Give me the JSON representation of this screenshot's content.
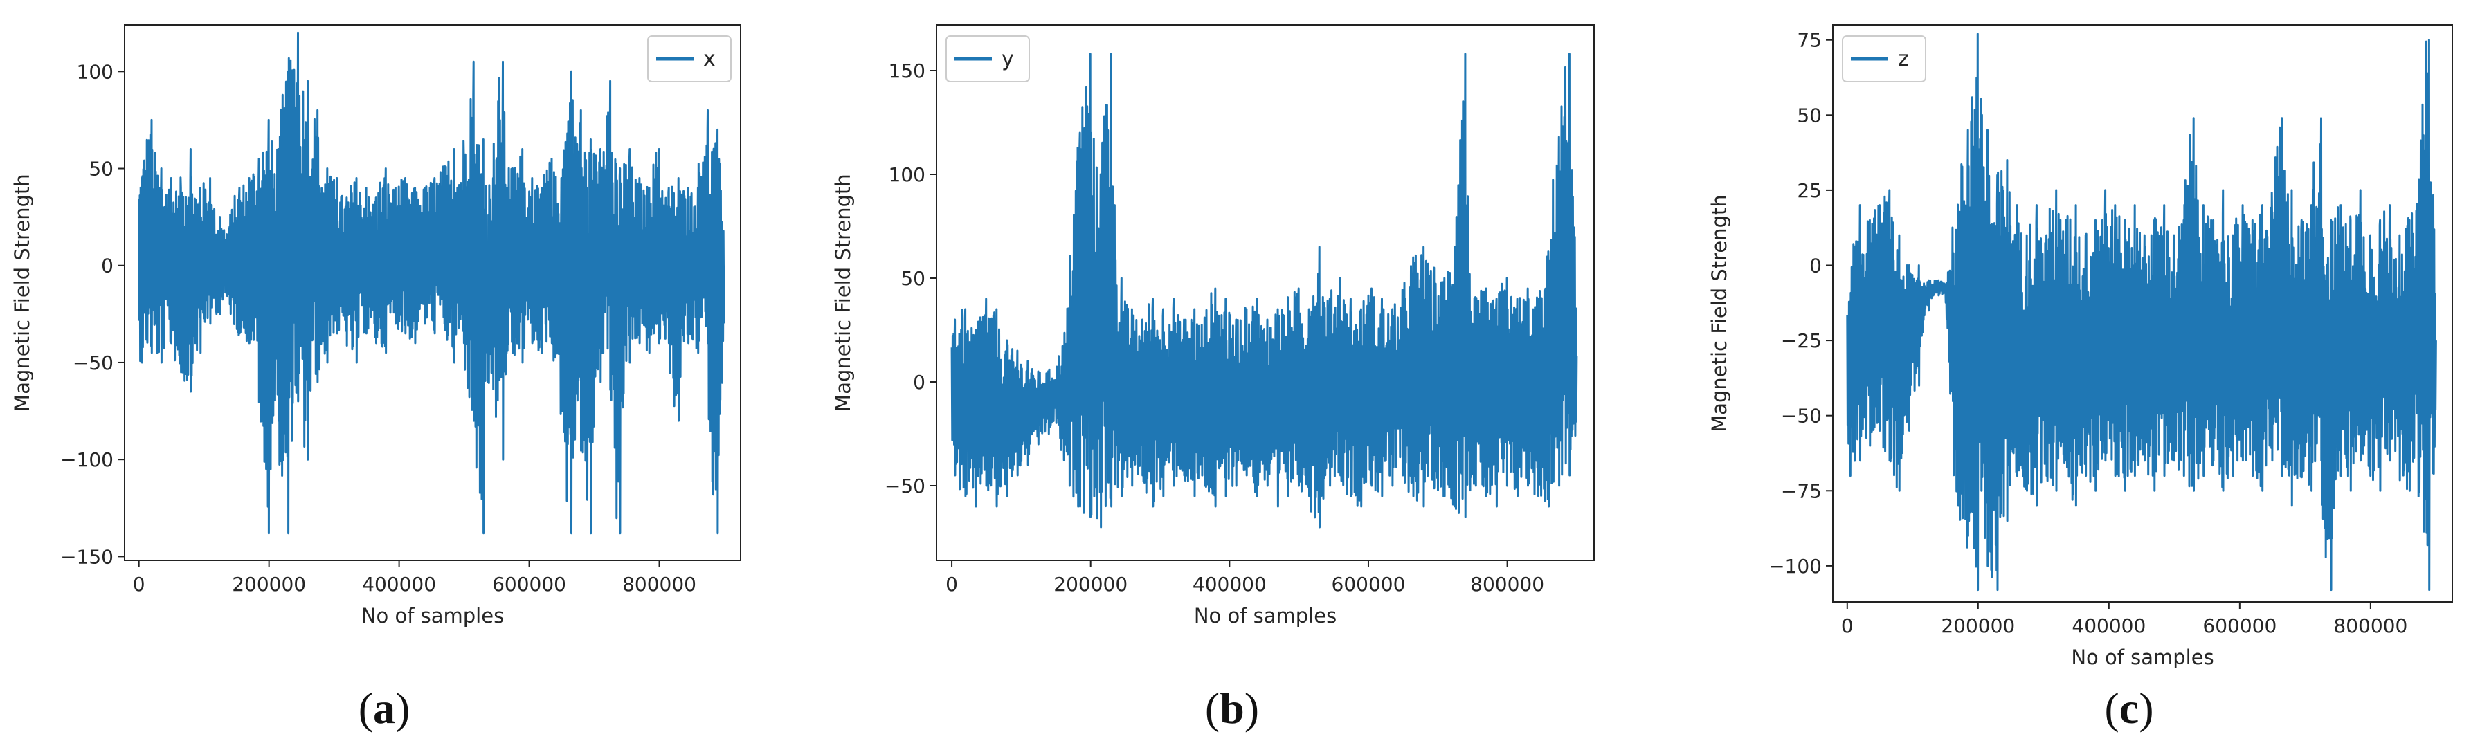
{
  "chart_data": [
    {
      "type": "line",
      "panel": "a",
      "caption_open": "(",
      "caption_letter": "a",
      "caption_close": ")",
      "xlabel": "No of samples",
      "ylabel": "Magnetic Field Strength",
      "xlim": [
        -22000,
        925000
      ],
      "ylim": [
        -152,
        124
      ],
      "xticks": [
        0,
        200000,
        400000,
        600000,
        800000
      ],
      "xtick_labels": [
        "0",
        "200000",
        "400000",
        "600000",
        "800000"
      ],
      "yticks": [
        -150,
        -100,
        -50,
        0,
        50,
        100
      ],
      "ytick_labels": [
        "−150",
        "−100",
        "−50",
        "0",
        "50",
        "100"
      ],
      "legend": "top-right",
      "series": [
        {
          "name": "x",
          "color": "#1f77b4",
          "x": [
            0,
            15000,
            30000,
            45000,
            60000,
            75000,
            90000,
            105000,
            120000,
            135000,
            150000,
            165000,
            180000,
            195000,
            210000,
            225000,
            240000,
            255000,
            270000,
            285000,
            300000,
            315000,
            330000,
            345000,
            360000,
            375000,
            390000,
            405000,
            420000,
            435000,
            450000,
            465000,
            480000,
            495000,
            510000,
            525000,
            540000,
            555000,
            570000,
            585000,
            600000,
            615000,
            630000,
            645000,
            660000,
            675000,
            690000,
            705000,
            720000,
            735000,
            750000,
            765000,
            780000,
            795000,
            810000,
            825000,
            840000,
            855000,
            870000,
            885000,
            900000
          ],
          "y_low": [
            -50,
            -45,
            -50,
            -40,
            -55,
            -65,
            -45,
            -30,
            -25,
            -20,
            -35,
            -40,
            -45,
            -138,
            -80,
            -138,
            -70,
            -100,
            -60,
            -50,
            -35,
            -40,
            -50,
            -35,
            -40,
            -45,
            -30,
            -35,
            -40,
            -30,
            -35,
            -30,
            -50,
            -40,
            -80,
            -138,
            -60,
            -100,
            -45,
            -50,
            -40,
            -45,
            -40,
            -60,
            -138,
            -80,
            -138,
            -60,
            -40,
            -138,
            -50,
            -40,
            -45,
            -40,
            -40,
            -80,
            -40,
            -45,
            -40,
            -138,
            -40
          ],
          "y_high": [
            45,
            75,
            50,
            45,
            40,
            60,
            40,
            45,
            25,
            20,
            40,
            45,
            55,
            75,
            60,
            100,
            120,
            95,
            80,
            50,
            45,
            35,
            45,
            40,
            35,
            50,
            40,
            45,
            40,
            40,
            45,
            50,
            60,
            55,
            105,
            65,
            45,
            105,
            50,
            60,
            45,
            40,
            55,
            45,
            100,
            80,
            65,
            60,
            95,
            50,
            60,
            45,
            40,
            60,
            40,
            45,
            40,
            40,
            80,
            70,
            40
          ]
        }
      ]
    },
    {
      "type": "line",
      "panel": "b",
      "caption_open": "(",
      "caption_letter": "b",
      "caption_close": ")",
      "xlabel": "No of samples",
      "ylabel": "Magnetic Field Strength",
      "xlim": [
        -22000,
        925000
      ],
      "ylim": [
        -86,
        172
      ],
      "xticks": [
        0,
        200000,
        400000,
        600000,
        800000
      ],
      "xtick_labels": [
        "0",
        "200000",
        "400000",
        "600000",
        "800000"
      ],
      "yticks": [
        -50,
        0,
        50,
        100,
        150
      ],
      "ytick_labels": [
        "−50",
        "0",
        "50",
        "100",
        "150"
      ],
      "legend": "top-left",
      "series": [
        {
          "name": "y",
          "color": "#1f77b4",
          "x": [
            0,
            15000,
            30000,
            45000,
            60000,
            75000,
            90000,
            105000,
            120000,
            135000,
            150000,
            165000,
            180000,
            195000,
            210000,
            225000,
            240000,
            255000,
            270000,
            285000,
            300000,
            315000,
            330000,
            345000,
            360000,
            375000,
            390000,
            405000,
            420000,
            435000,
            450000,
            465000,
            480000,
            495000,
            510000,
            525000,
            540000,
            555000,
            570000,
            585000,
            600000,
            615000,
            630000,
            645000,
            660000,
            675000,
            690000,
            705000,
            720000,
            735000,
            750000,
            765000,
            780000,
            795000,
            810000,
            825000,
            840000,
            855000,
            870000,
            885000,
            900000
          ],
          "y_low": [
            -45,
            -55,
            -60,
            -50,
            -60,
            -55,
            -45,
            -40,
            -30,
            -25,
            -20,
            -50,
            -60,
            -65,
            -70,
            -60,
            -55,
            -50,
            -45,
            -60,
            -55,
            -50,
            -45,
            -55,
            -50,
            -60,
            -55,
            -50,
            -45,
            -55,
            -50,
            -60,
            -55,
            -50,
            -55,
            -70,
            -50,
            -45,
            -55,
            -60,
            -50,
            -55,
            -50,
            -45,
            -55,
            -60,
            -50,
            -55,
            -60,
            -65,
            -50,
            -55,
            -60,
            -50,
            -55,
            -50,
            -55,
            -60,
            -50,
            -45,
            -35
          ],
          "y_high": [
            30,
            35,
            25,
            40,
            35,
            20,
            15,
            10,
            5,
            5,
            8,
            30,
            120,
            158,
            100,
            158,
            50,
            35,
            30,
            40,
            35,
            40,
            30,
            35,
            30,
            45,
            40,
            30,
            35,
            40,
            30,
            35,
            40,
            45,
            35,
            65,
            40,
            50,
            40,
            35,
            45,
            40,
            35,
            40,
            60,
            65,
            55,
            50,
            65,
            158,
            40,
            45,
            40,
            50,
            40,
            45,
            40,
            50,
            118,
            158,
            60
          ]
        }
      ]
    },
    {
      "type": "line",
      "panel": "c",
      "caption_open": "(",
      "caption_letter": "c",
      "caption_close": ")",
      "xlabel": "No of samples",
      "ylabel": "Magnetic Field Strength",
      "xlim": [
        -22000,
        925000
      ],
      "ylim": [
        -112,
        80
      ],
      "xticks": [
        0,
        200000,
        400000,
        600000,
        800000
      ],
      "xtick_labels": [
        "0",
        "200000",
        "400000",
        "600000",
        "800000"
      ],
      "yticks": [
        -100,
        -75,
        -50,
        -25,
        0,
        25,
        50,
        75
      ],
      "ytick_labels": [
        "−100",
        "−75",
        "−50",
        "−25",
        "0",
        "25",
        "50",
        "75"
      ],
      "legend": "top-left",
      "series": [
        {
          "name": "z",
          "color": "#1f77b4",
          "x": [
            0,
            15000,
            30000,
            45000,
            60000,
            75000,
            90000,
            105000,
            120000,
            135000,
            150000,
            165000,
            180000,
            195000,
            210000,
            225000,
            240000,
            255000,
            270000,
            285000,
            300000,
            315000,
            330000,
            345000,
            360000,
            375000,
            390000,
            405000,
            420000,
            435000,
            450000,
            465000,
            480000,
            495000,
            510000,
            525000,
            540000,
            555000,
            570000,
            585000,
            600000,
            615000,
            630000,
            645000,
            660000,
            675000,
            690000,
            705000,
            720000,
            735000,
            750000,
            765000,
            780000,
            795000,
            810000,
            825000,
            840000,
            855000,
            870000,
            885000,
            900000
          ],
          "y_low": [
            -70,
            -65,
            -60,
            -55,
            -65,
            -75,
            -55,
            -40,
            -15,
            -10,
            -10,
            -80,
            -90,
            -108,
            -100,
            -108,
            -85,
            -70,
            -75,
            -80,
            -70,
            -75,
            -65,
            -80,
            -70,
            -75,
            -65,
            -70,
            -75,
            -70,
            -65,
            -75,
            -70,
            -65,
            -70,
            -75,
            -70,
            -65,
            -75,
            -70,
            -65,
            -70,
            -75,
            -65,
            -70,
            -80,
            -70,
            -75,
            -65,
            -108,
            -70,
            -75,
            -65,
            -70,
            -75,
            -65,
            -70,
            -75,
            -70,
            -108,
            -60
          ],
          "y_high": [
            -15,
            20,
            15,
            20,
            25,
            10,
            0,
            0,
            -5,
            -5,
            -5,
            20,
            45,
            77,
            45,
            30,
            35,
            20,
            10,
            20,
            10,
            25,
            15,
            20,
            10,
            15,
            25,
            20,
            15,
            20,
            10,
            15,
            20,
            10,
            15,
            49,
            20,
            15,
            25,
            10,
            20,
            15,
            20,
            15,
            49,
            25,
            15,
            20,
            49,
            15,
            20,
            15,
            25,
            10,
            15,
            20,
            10,
            15,
            20,
            75,
            10
          ]
        }
      ]
    }
  ]
}
